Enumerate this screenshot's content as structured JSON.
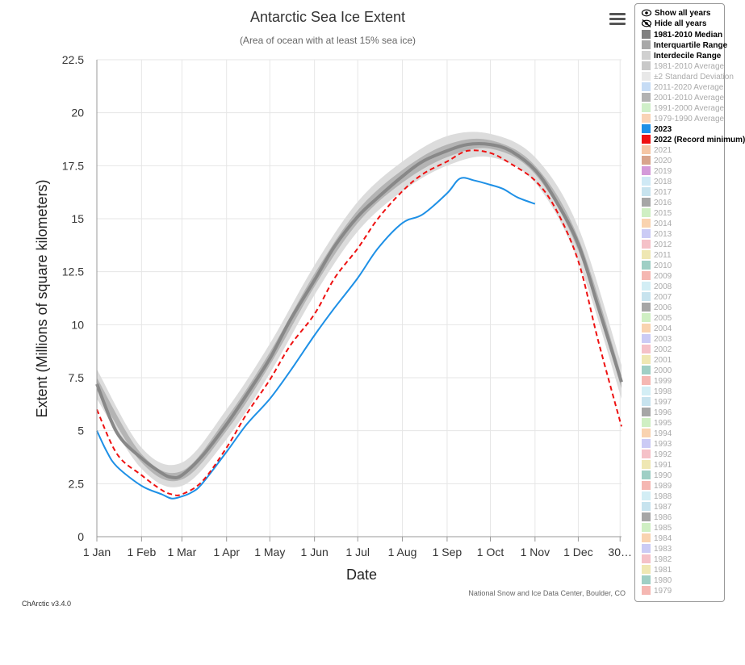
{
  "chart_data": {
    "type": "line",
    "title": "Antarctic Sea Ice Extent",
    "subtitle": "(Area of ocean with at least 15% sea ice)",
    "xlabel": "Date",
    "ylabel": "Extent (Millions of square kilometers)",
    "ylim": [
      0,
      22.5
    ],
    "yticks": [
      "0",
      "2.5",
      "5",
      "7.5",
      "10",
      "12.5",
      "15",
      "17.5",
      "20",
      "22.5"
    ],
    "xlim": [
      "Jan 1",
      "Dec 31"
    ],
    "xticks": [
      "1 Jan",
      "1 Feb",
      "1 Mar",
      "1 Apr",
      "1 May",
      "1 Jun",
      "1 Jul",
      "1 Aug",
      "1 Sep",
      "1 Oct",
      "1 Nov",
      "1 Dec",
      "30…"
    ],
    "grid": true,
    "legend": "right",
    "series": [
      {
        "name": "1981-2010 Median",
        "color": "#888888",
        "style": "solid",
        "x": [
          "Jan 1",
          "Jan 15",
          "Feb 1",
          "Feb 15",
          "Feb 22",
          "Mar 1",
          "Mar 15",
          "Apr 1",
          "Apr 15",
          "May 1",
          "May 15",
          "Jun 1",
          "Jun 15",
          "Jul 1",
          "Jul 15",
          "Aug 1",
          "Aug 15",
          "Sep 1",
          "Sep 15",
          "Oct 1",
          "Oct 15",
          "Nov 1",
          "Nov 15",
          "Dec 1",
          "Dec 15",
          "Dec 31"
        ],
        "values": [
          7.2,
          4.9,
          3.7,
          3.0,
          2.8,
          2.9,
          3.8,
          5.3,
          6.7,
          8.4,
          10.2,
          12.1,
          13.7,
          15.1,
          16.0,
          17.0,
          17.7,
          18.2,
          18.5,
          18.5,
          18.2,
          17.3,
          15.9,
          13.8,
          10.8,
          7.3
        ]
      },
      {
        "name": "Interquartile Range",
        "color": "#b4b4b4",
        "x": [
          "Jan 1",
          "Feb 1",
          "Mar 1",
          "Apr 1",
          "May 1",
          "Jun 1",
          "Jul 1",
          "Aug 1",
          "Sep 1",
          "Oct 1",
          "Nov 1",
          "Dec 1",
          "Dec 31"
        ],
        "low": [
          6.9,
          3.5,
          2.7,
          5.0,
          8.1,
          11.8,
          14.8,
          16.7,
          17.9,
          18.3,
          17.1,
          13.5,
          7.0
        ],
        "high": [
          7.5,
          3.9,
          3.1,
          5.6,
          8.7,
          12.4,
          15.4,
          17.3,
          18.5,
          18.7,
          17.5,
          14.1,
          7.6
        ]
      },
      {
        "name": "Interdecile Range",
        "color": "#dcdcdc",
        "x": [
          "Jan 1",
          "Feb 1",
          "Mar 1",
          "Apr 1",
          "May 1",
          "Jun 1",
          "Jul 1",
          "Aug 1",
          "Sep 1",
          "Oct 1",
          "Nov 1",
          "Dec 1",
          "Dec 31"
        ],
        "low": [
          6.5,
          3.2,
          2.4,
          4.6,
          7.7,
          11.4,
          14.4,
          16.3,
          17.5,
          17.9,
          16.7,
          13.0,
          6.5
        ],
        "high": [
          7.9,
          4.2,
          3.5,
          6.0,
          9.1,
          12.8,
          15.8,
          17.7,
          18.9,
          19.0,
          17.9,
          14.6,
          8.1
        ]
      },
      {
        "name": "2023",
        "color": "#1e90e6",
        "style": "solid",
        "x": [
          "Jan 1",
          "Jan 8",
          "Jan 15",
          "Feb 1",
          "Feb 15",
          "Feb 22",
          "Mar 1",
          "Mar 8",
          "Mar 15",
          "Apr 1",
          "Apr 15",
          "May 1",
          "May 15",
          "Jun 1",
          "Jun 15",
          "Jul 1",
          "Jul 15",
          "Aug 1",
          "Aug 15",
          "Sep 1",
          "Sep 10",
          "Sep 20",
          "Oct 1",
          "Oct 10",
          "Oct 20",
          "Nov 1"
        ],
        "values": [
          5.0,
          4.0,
          3.3,
          2.4,
          2.0,
          1.8,
          1.9,
          2.1,
          2.5,
          4.0,
          5.3,
          6.5,
          7.8,
          9.5,
          10.8,
          12.2,
          13.6,
          14.8,
          15.2,
          16.2,
          16.9,
          16.8,
          16.6,
          16.4,
          16.0,
          15.7
        ]
      },
      {
        "name": "2022 (Record minimum)",
        "color": "#ee1111",
        "style": "dashed",
        "x": [
          "Jan 1",
          "Jan 15",
          "Feb 1",
          "Feb 15",
          "Feb 22",
          "Mar 1",
          "Mar 15",
          "Apr 1",
          "Apr 15",
          "May 1",
          "May 15",
          "Jun 1",
          "Jun 15",
          "Jul 1",
          "Jul 15",
          "Aug 1",
          "Aug 15",
          "Sep 1",
          "Sep 15",
          "Oct 1",
          "Oct 15",
          "Nov 1",
          "Nov 15",
          "Dec 1",
          "Dec 15",
          "Dec 31"
        ],
        "values": [
          6.0,
          3.9,
          2.9,
          2.2,
          2.0,
          2.0,
          2.6,
          4.2,
          5.8,
          7.4,
          9.0,
          10.5,
          12.2,
          13.6,
          15.0,
          16.3,
          17.1,
          17.7,
          18.2,
          18.1,
          17.6,
          16.8,
          15.5,
          13.0,
          9.2,
          5.2
        ]
      }
    ]
  },
  "legend": {
    "show_all": "Show all years",
    "hide_all": "Hide all years",
    "items": [
      {
        "label": "1981-2010 Median",
        "color": "#808080",
        "active": true
      },
      {
        "label": "Interquartile Range",
        "color": "#a8a8a8",
        "active": true
      },
      {
        "label": "Interdecile Range",
        "color": "#d0d0d0",
        "active": true
      },
      {
        "label": "1981-2010 Average",
        "color": "#c8c8c8",
        "active": false
      },
      {
        "label": "±2 Standard Deviation",
        "color": "#e8e8e8",
        "active": false
      },
      {
        "label": "2011-2020 Average",
        "color": "#c6dcf5",
        "active": false
      },
      {
        "label": "2001-2010 Average",
        "color": "#b2b2b2",
        "active": false
      },
      {
        "label": "1991-2000 Average",
        "color": "#cfefc8",
        "active": false
      },
      {
        "label": "1979-1990 Average",
        "color": "#f9d3b6",
        "active": false
      },
      {
        "label": "2023",
        "color": "#1e90e6",
        "active": true
      },
      {
        "label": "2022 (Record minimum)",
        "color": "#ee1111",
        "active": true
      },
      {
        "label": "2021",
        "color": "#f5c6a5",
        "active": false
      },
      {
        "label": "2020",
        "color": "#d8a48c",
        "active": false
      },
      {
        "label": "2019",
        "color": "#d49ad9",
        "active": false
      },
      {
        "label": "2018",
        "color": "#cfe9f5",
        "active": false
      },
      {
        "label": "2017",
        "color": "#c7e3ee",
        "active": false
      },
      {
        "label": "2016",
        "color": "#a6a6a6",
        "active": false
      },
      {
        "label": "2015",
        "color": "#cfefc3",
        "active": false
      },
      {
        "label": "2014",
        "color": "#f9d3b0",
        "active": false
      },
      {
        "label": "2013",
        "color": "#cbcbf5",
        "active": false
      },
      {
        "label": "2012",
        "color": "#f5c1c8",
        "active": false
      },
      {
        "label": "2011",
        "color": "#efe7b3",
        "active": false
      },
      {
        "label": "2010",
        "color": "#9fcfc5",
        "active": false
      },
      {
        "label": "2009",
        "color": "#f5b7b2",
        "active": false
      },
      {
        "label": "2008",
        "color": "#d3eef5",
        "active": false
      },
      {
        "label": "2007",
        "color": "#c7e3ee",
        "active": false
      },
      {
        "label": "2006",
        "color": "#a6a6a6",
        "active": false
      },
      {
        "label": "2005",
        "color": "#cfefc3",
        "active": false
      },
      {
        "label": "2004",
        "color": "#f9d3b0",
        "active": false
      },
      {
        "label": "2003",
        "color": "#cbcbf5",
        "active": false
      },
      {
        "label": "2002",
        "color": "#f5c1c8",
        "active": false
      },
      {
        "label": "2001",
        "color": "#efe7b3",
        "active": false
      },
      {
        "label": "2000",
        "color": "#9fcfc5",
        "active": false
      },
      {
        "label": "1999",
        "color": "#f5b7b2",
        "active": false
      },
      {
        "label": "1998",
        "color": "#d3eef5",
        "active": false
      },
      {
        "label": "1997",
        "color": "#c7e3ee",
        "active": false
      },
      {
        "label": "1996",
        "color": "#a6a6a6",
        "active": false
      },
      {
        "label": "1995",
        "color": "#cfefc3",
        "active": false
      },
      {
        "label": "1994",
        "color": "#f9d3b0",
        "active": false
      },
      {
        "label": "1993",
        "color": "#cbcbf5",
        "active": false
      },
      {
        "label": "1992",
        "color": "#f5c1c8",
        "active": false
      },
      {
        "label": "1991",
        "color": "#efe7b3",
        "active": false
      },
      {
        "label": "1990",
        "color": "#9fcfc5",
        "active": false
      },
      {
        "label": "1989",
        "color": "#f5b7b2",
        "active": false
      },
      {
        "label": "1988",
        "color": "#d3eef5",
        "active": false
      },
      {
        "label": "1987",
        "color": "#c7e3ee",
        "active": false
      },
      {
        "label": "1986",
        "color": "#a6a6a6",
        "active": false
      },
      {
        "label": "1985",
        "color": "#cfefc3",
        "active": false
      },
      {
        "label": "1984",
        "color": "#f9d3b0",
        "active": false
      },
      {
        "label": "1983",
        "color": "#cbcbf5",
        "active": false
      },
      {
        "label": "1982",
        "color": "#f5c1c8",
        "active": false
      },
      {
        "label": "1981",
        "color": "#efe7b3",
        "active": false
      },
      {
        "label": "1980",
        "color": "#9fcfc5",
        "active": false
      },
      {
        "label": "1979",
        "color": "#f5b7b2",
        "active": false
      }
    ]
  },
  "credit": "National Snow and Ice Data Center, Boulder, CO",
  "version": "ChArctic v3.4.0",
  "menu_icon": "hamburger-icon"
}
